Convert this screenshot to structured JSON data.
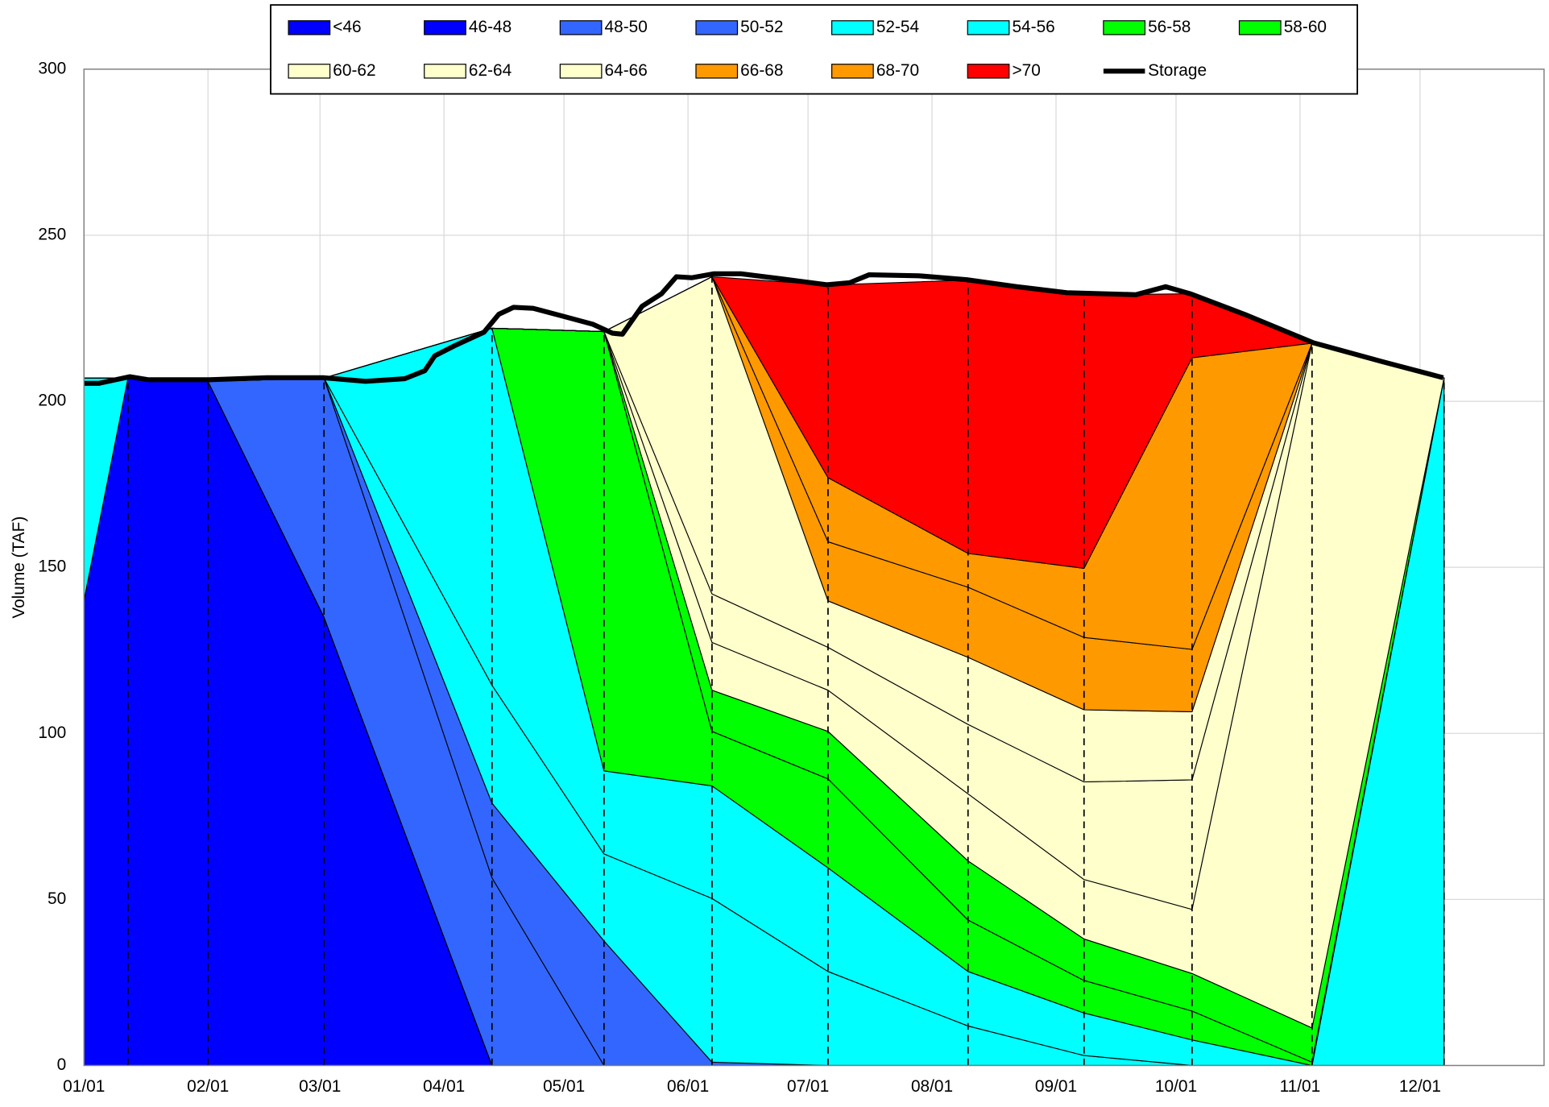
{
  "chart_data": {
    "type": "area",
    "ylabel": "Volume (TAF)",
    "grid": true,
    "legend": "top",
    "x": [
      1,
      12,
      32,
      61,
      103,
      131,
      158,
      187,
      222,
      251,
      278,
      308,
      341
    ],
    "xlim": [
      1,
      366
    ],
    "xticks": [
      {
        "value": 1,
        "label": "01/01"
      },
      {
        "value": 32,
        "label": "02/01"
      },
      {
        "value": 60,
        "label": "03/01"
      },
      {
        "value": 91,
        "label": "04/01"
      },
      {
        "value": 121,
        "label": "05/01"
      },
      {
        "value": 152,
        "label": "06/01"
      },
      {
        "value": 182,
        "label": "07/01"
      },
      {
        "value": 213,
        "label": "08/01"
      },
      {
        "value": 244,
        "label": "09/01"
      },
      {
        "value": 274,
        "label": "10/01"
      },
      {
        "value": 305,
        "label": "11/01"
      },
      {
        "value": 335,
        "label": "12/01"
      }
    ],
    "ylim": [
      0,
      300
    ],
    "yticks": [
      0,
      50,
      100,
      150,
      200,
      250,
      300
    ],
    "series": [
      {
        "name": "<46",
        "color": "#0000ff",
        "values": [
          140,
          207,
          206,
          135,
          0,
          0,
          0,
          0,
          0,
          0,
          0,
          0,
          0
        ]
      },
      {
        "name": "46-48",
        "color": "#0000ff",
        "values": [
          0,
          0,
          0,
          0,
          0,
          0,
          0,
          0,
          0,
          0,
          0,
          0,
          0
        ]
      },
      {
        "name": "48-50",
        "color": "#3366ff",
        "values": [
          0,
          0,
          0,
          72,
          56.5,
          0,
          0,
          0,
          0,
          0,
          0,
          0,
          0
        ]
      },
      {
        "name": "50-52",
        "color": "#3366ff",
        "values": [
          0,
          0,
          0,
          0,
          22.5,
          37.5,
          1,
          0,
          0,
          0,
          0,
          0,
          0
        ]
      },
      {
        "name": "52-54",
        "color": "#00ffff",
        "values": [
          0,
          0,
          0,
          0,
          35.5,
          26.2,
          49.3,
          28.3,
          11.9,
          3,
          0,
          0,
          0
        ]
      },
      {
        "name": "54-56",
        "color": "#00ffff",
        "values": [
          67,
          0,
          0,
          0,
          107.5,
          25,
          33.9,
          31.2,
          16.4,
          12.8,
          7.7,
          0,
          207
        ]
      },
      {
        "name": "56-58",
        "color": "#00ff00",
        "values": [
          0,
          0,
          0,
          0,
          0,
          132.3,
          16.4,
          26.8,
          15.5,
          9.8,
          8.7,
          1,
          0
        ]
      },
      {
        "name": "58-60",
        "color": "#00ff00",
        "values": [
          0,
          0,
          0,
          0,
          0,
          0,
          12.4,
          14.3,
          17.8,
          12.5,
          11.3,
          10.3,
          0
        ]
      },
      {
        "name": "60-62",
        "color": "#ffffcc",
        "values": [
          0,
          0,
          0,
          0,
          0,
          0,
          14.4,
          12.4,
          20.2,
          17.9,
          19.3,
          206.2,
          0
        ]
      },
      {
        "name": "62-64",
        "color": "#ffffcc",
        "values": [
          0,
          0,
          0,
          0,
          0,
          0,
          14.6,
          12.9,
          20.9,
          29.4,
          39,
          0,
          0
        ]
      },
      {
        "name": "64-66",
        "color": "#ffffcc",
        "values": [
          0,
          0,
          0,
          0,
          0,
          0,
          95.5,
          14,
          20.2,
          21.7,
          20.5,
          0,
          0
        ]
      },
      {
        "name": "66-68",
        "color": "#ff9900",
        "values": [
          0,
          0,
          0,
          0,
          0,
          0,
          0,
          17.8,
          21.1,
          21.8,
          18.8,
          0,
          0
        ]
      },
      {
        "name": "68-70",
        "color": "#ff9900",
        "values": [
          0,
          0,
          0,
          0,
          0,
          0,
          0,
          19.3,
          10.2,
          20.8,
          87.8,
          0,
          0
        ]
      },
      {
        "name": ">70",
        "color": "#ff0000",
        "values": [
          0,
          0,
          0,
          0,
          0,
          0,
          0,
          58,
          82.3,
          82.3,
          19.3,
          0,
          0
        ]
      },
      {
        "name": "Storage",
        "color": "#000000",
        "type": "line",
        "x": [
          1,
          4.7,
          12.4,
          17,
          32.4,
          46.7,
          60.8,
          71.4,
          81.2,
          86.2,
          88.7,
          93.6,
          101,
          104.7,
          108.4,
          113.3,
          120.8,
          128.2,
          133.1,
          135.6,
          140.5,
          145.4,
          149.1,
          152.9,
          158.5,
          165.2,
          175.1,
          186.7,
          192.4,
          197.3,
          209.6,
          221.7,
          234.3,
          246.7,
          264,
          271.4,
          277.5,
          291.1,
          308.4,
          325.7,
          340.8
        ],
        "values": [
          205.4,
          205.4,
          207.4,
          206.5,
          206.5,
          207.1,
          207.1,
          206,
          206.8,
          209.2,
          213.7,
          216.7,
          220.8,
          226.2,
          228.3,
          228,
          225.6,
          223.2,
          220.5,
          220.2,
          228.6,
          232.4,
          237.5,
          237.2,
          238.4,
          238.4,
          236.9,
          235.1,
          235.7,
          238.1,
          237.8,
          236.6,
          234.5,
          232.7,
          232.1,
          234.5,
          232.4,
          226.2,
          217.6,
          211.9,
          207.1
        ]
      }
    ]
  }
}
